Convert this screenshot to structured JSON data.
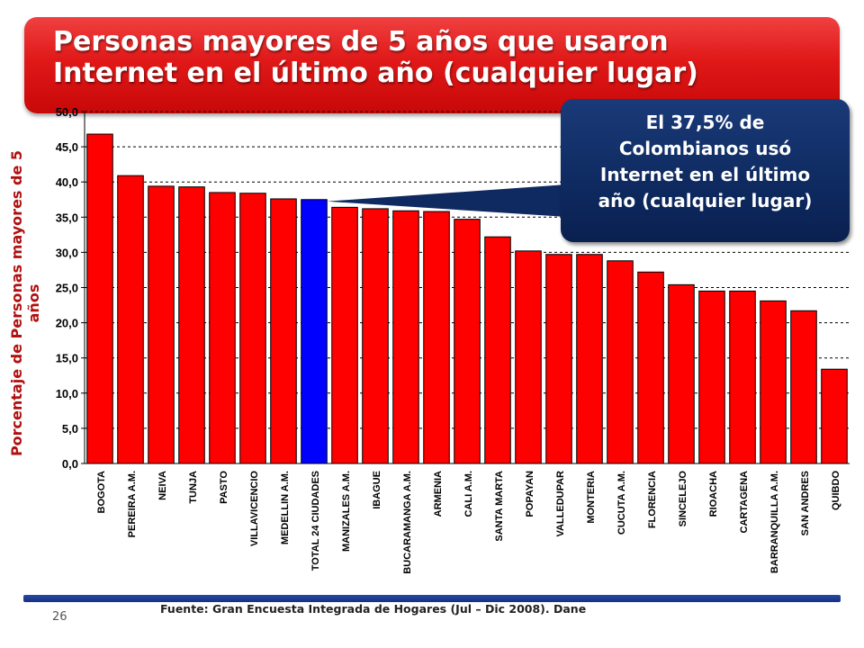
{
  "slide": {
    "title_line1": "Personas mayores de 5 años que usaron",
    "title_line2": "Internet en el último año (cualquier lugar)",
    "callout": [
      "El 37,5% de",
      "Colombianos usó",
      "Internet en el último",
      "año (cualquier lugar)"
    ],
    "source": "Fuente: Gran Encuesta Integrada de Hogares (Jul – Dic 2008).  Dane",
    "page_number": "26"
  },
  "colors": {
    "bar": "#ff0000",
    "highlight_bar": "#0000ff",
    "title_bg": "#e01818",
    "callout_bg": "#0e2a60",
    "axis_title": "#b01010",
    "footer_bar": "#1f3c96"
  },
  "chart_data": {
    "type": "bar",
    "title": "Personas mayores de 5 años que usaron Internet en el último año (cualquier lugar)",
    "xlabel": "",
    "ylabel": "Porcentaje  de Personas mayores de 5 años",
    "ylim": [
      0,
      50
    ],
    "yticks": [
      "0,0",
      "5,0",
      "10,0",
      "15,0",
      "20,0",
      "25,0",
      "30,0",
      "35,0",
      "40,0",
      "45,0",
      "50,0"
    ],
    "grid": true,
    "highlight_category": "TOTAL 24 CIUDADES",
    "categories": [
      "BOGOTA",
      "PEREIRA A.M.",
      "NEIVA",
      "TUNJA",
      "PASTO",
      "VILLAVICENCIO",
      "MEDELLIN A.M.",
      "TOTAL 24 CIUDADES",
      "MANIZALES A.M.",
      "IBAGUE",
      "BUCARAMANGA A.M.",
      "ARMENIA",
      "CALI A.M.",
      "SANTA MARTA",
      "POPAYAN",
      "VALLEDUPAR",
      "MONTERIA",
      "CUCUTA A.M.",
      "FLORENCIA",
      "SINCELEJO",
      "RIOACHA",
      "CARTAGENA",
      "BARRANQUILLA A.M.",
      "SAN ANDRES",
      "QUIBDO"
    ],
    "values": [
      46.8,
      40.9,
      39.4,
      39.3,
      38.5,
      38.4,
      37.6,
      37.5,
      36.4,
      36.2,
      35.9,
      35.8,
      34.7,
      32.2,
      30.2,
      29.7,
      29.7,
      28.8,
      27.2,
      25.4,
      24.5,
      24.5,
      23.1,
      21.7,
      13.4
    ]
  }
}
